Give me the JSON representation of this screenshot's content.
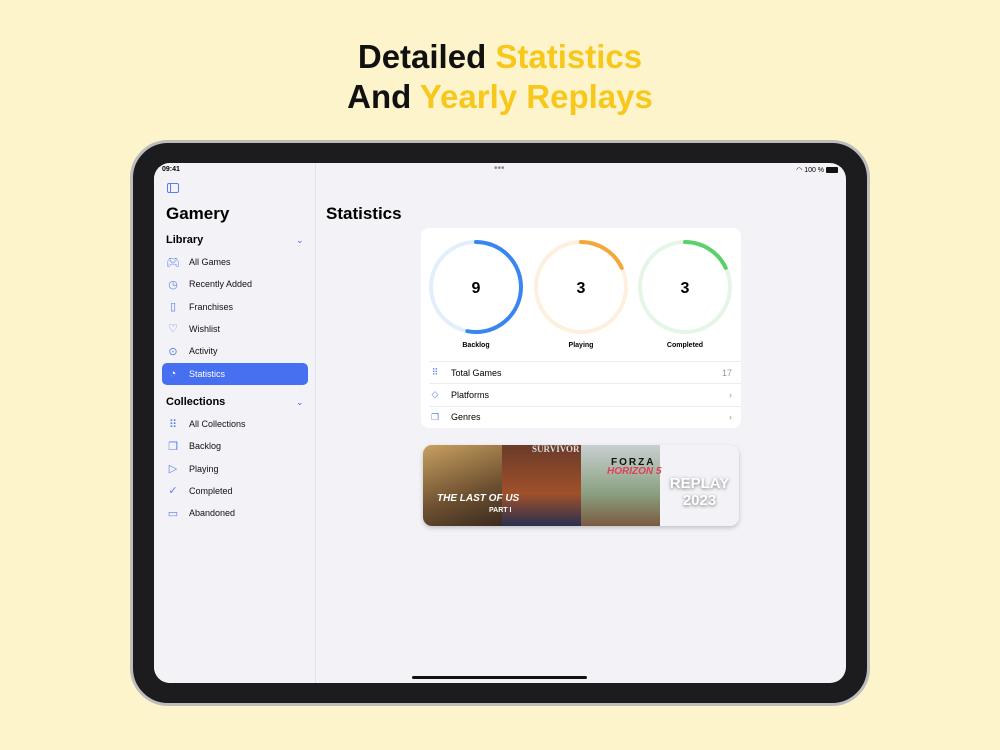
{
  "headline": {
    "line1_a": "Detailed ",
    "line1_b": "Statistics",
    "line2_a": "And ",
    "line2_b": "Yearly Replays"
  },
  "status": {
    "time": "09:41",
    "battery": "100 %"
  },
  "sidebar": {
    "app_title": "Gamery",
    "library_label": "Library",
    "collections_label": "Collections",
    "library": [
      {
        "label": "All Games",
        "icon": "gamecontroller-icon"
      },
      {
        "label": "Recently Added",
        "icon": "clock-icon"
      },
      {
        "label": "Franchises",
        "icon": "jar-icon"
      },
      {
        "label": "Wishlist",
        "icon": "heart-icon"
      },
      {
        "label": "Activity",
        "icon": "activity-icon"
      },
      {
        "label": "Statistics",
        "icon": "chart-pie-icon",
        "selected": true
      }
    ],
    "collections": [
      {
        "label": "All Collections",
        "icon": "grid-icon"
      },
      {
        "label": "Backlog",
        "icon": "stack-icon"
      },
      {
        "label": "Playing",
        "icon": "play-icon"
      },
      {
        "label": "Completed",
        "icon": "checkmark-icon"
      },
      {
        "label": "Abandoned",
        "icon": "archive-icon"
      }
    ]
  },
  "main": {
    "title": "Statistics",
    "rings": [
      {
        "label": "Backlog",
        "value": "9",
        "fraction": 0.53,
        "color": "#3a86f0",
        "track": "#e3eefc"
      },
      {
        "label": "Playing",
        "value": "3",
        "fraction": 0.18,
        "color": "#f3a93a",
        "track": "#fdf0de"
      },
      {
        "label": "Completed",
        "value": "3",
        "fraction": 0.18,
        "color": "#5cd06a",
        "track": "#e5f6e7"
      }
    ],
    "rows": [
      {
        "label": "Total Games",
        "value": "17"
      },
      {
        "label": "Platforms",
        "value": "›"
      },
      {
        "label": "Genres",
        "value": "›"
      }
    ],
    "replay": {
      "label": "REPLAY 2023",
      "games": [
        "THE LAST OF US",
        "PART I",
        "SURVIVOR",
        "FORZA",
        "HORIZON 5"
      ]
    }
  },
  "colors": {
    "accent": "#4770f0",
    "background": "#fdf4cc",
    "highlight": "#f7c81b"
  }
}
